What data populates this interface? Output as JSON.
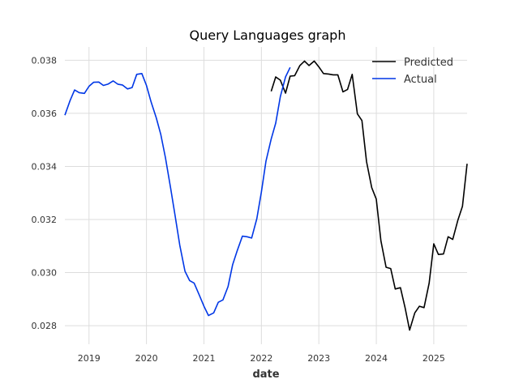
{
  "chart_data": {
    "type": "line",
    "title": "Query Languages graph",
    "xlabel": "date",
    "ylabel": "",
    "x_unit": "year",
    "xlim": [
      2018.58,
      2025.58
    ],
    "ylim": [
      0.0273,
      0.0385
    ],
    "x_ticks": [
      2019,
      2020,
      2021,
      2022,
      2023,
      2024,
      2025
    ],
    "x_tick_labels": [
      "2019",
      "2020",
      "2021",
      "2022",
      "2023",
      "2024",
      "2025"
    ],
    "y_ticks": [
      0.028,
      0.03,
      0.032,
      0.034,
      0.036,
      0.038
    ],
    "y_tick_labels": [
      "0.028",
      "0.030",
      "0.032",
      "0.034",
      "0.036",
      "0.038"
    ],
    "grid": true,
    "legend_position": "top-right",
    "series": [
      {
        "name": "Predicted",
        "color": "#000000",
        "x": [
          2022.17,
          2022.25,
          2022.33,
          2022.42,
          2022.5,
          2022.58,
          2022.67,
          2022.75,
          2022.83,
          2022.92,
          2023.0,
          2023.08,
          2023.17,
          2023.25,
          2023.33,
          2023.42,
          2023.5,
          2023.58,
          2023.67,
          2023.75,
          2023.83,
          2023.92,
          2024.0,
          2024.08,
          2024.17,
          2024.25,
          2024.33,
          2024.42,
          2024.5,
          2024.58,
          2024.67,
          2024.75,
          2024.83,
          2024.92,
          2025.0,
          2025.08,
          2025.17,
          2025.25,
          2025.33,
          2025.42,
          2025.5,
          2025.58
        ],
        "values": [
          0.03683,
          0.03737,
          0.03725,
          0.03676,
          0.0374,
          0.03742,
          0.0378,
          0.03797,
          0.0378,
          0.03797,
          0.03775,
          0.0375,
          0.03748,
          0.03745,
          0.03745,
          0.03681,
          0.0369,
          0.03747,
          0.03598,
          0.03573,
          0.03418,
          0.0332,
          0.03277,
          0.0312,
          0.0302,
          0.03015,
          0.02938,
          0.02943,
          0.02868,
          0.02783,
          0.02848,
          0.02873,
          0.02868,
          0.0296,
          0.03108,
          0.03068,
          0.0307,
          0.03135,
          0.03125,
          0.03198,
          0.0325,
          0.0341
        ]
      },
      {
        "name": "Actual",
        "color": "#0037E6",
        "x": [
          2018.58,
          2018.67,
          2018.75,
          2018.83,
          2018.92,
          2019.0,
          2019.08,
          2019.17,
          2019.25,
          2019.33,
          2019.42,
          2019.5,
          2019.58,
          2019.67,
          2019.75,
          2019.83,
          2019.92,
          2020.0,
          2020.08,
          2020.17,
          2020.25,
          2020.33,
          2020.42,
          2020.5,
          2020.58,
          2020.67,
          2020.75,
          2020.83,
          2020.92,
          2021.0,
          2021.08,
          2021.17,
          2021.25,
          2021.33,
          2021.42,
          2021.5,
          2021.58,
          2021.67,
          2021.75,
          2021.83,
          2021.92,
          2022.0,
          2022.08,
          2022.17,
          2022.25,
          2022.33,
          2022.42,
          2022.5
        ],
        "values": [
          0.03593,
          0.03648,
          0.03688,
          0.03678,
          0.03675,
          0.03702,
          0.03717,
          0.03718,
          0.03705,
          0.0371,
          0.03722,
          0.0371,
          0.03707,
          0.03692,
          0.03697,
          0.03747,
          0.0375,
          0.03705,
          0.03643,
          0.03583,
          0.0352,
          0.03433,
          0.03318,
          0.03213,
          0.03103,
          0.03005,
          0.0297,
          0.0296,
          0.02915,
          0.02873,
          0.02838,
          0.02848,
          0.02888,
          0.02897,
          0.02947,
          0.0303,
          0.03083,
          0.03137,
          0.03135,
          0.0313,
          0.03203,
          0.03303,
          0.0342,
          0.03503,
          0.03563,
          0.03663,
          0.03737,
          0.03773
        ]
      }
    ]
  }
}
